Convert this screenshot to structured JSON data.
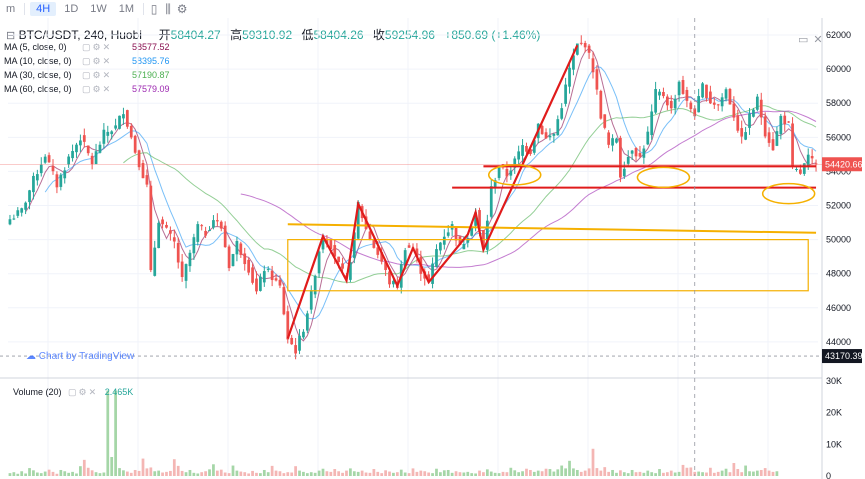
{
  "toolbar": {
    "items": [
      {
        "label": "m"
      },
      {
        "label": "4H"
      },
      {
        "label": "1D"
      },
      {
        "label": "1W"
      },
      {
        "label": "1M"
      }
    ],
    "chart_type_icon": "candles-icon",
    "settings_icon": "settings-icon",
    "chart_icon": "bar-chart-icon"
  },
  "legend": {
    "symbol": "BTC/USDT, 240, Huobi",
    "open_label": "开",
    "open": "58404.27",
    "high_label": "高",
    "high": "59310.92",
    "low_label": "低",
    "low": "58404.26",
    "close_label": "收",
    "close": "59254.96",
    "change": "+850.69 (+1.46%)"
  },
  "indicators": [
    {
      "name": "MA (5, close, 0)",
      "value": "58577.52",
      "color": "#880e4f"
    },
    {
      "name": "MA (10, close, 0)",
      "value": "58395.76",
      "color": "#2196f3"
    },
    {
      "name": "MA (30, close, 0)",
      "value": "57190.87",
      "color": "#4caf50"
    },
    {
      "name": "MA (60, close, 0)",
      "value": "57579.09",
      "color": "#9c27b0"
    }
  ],
  "watermark": "Chart by TradingView",
  "volume": {
    "name": "Volume (20)",
    "value": "2.465K"
  },
  "colors": {
    "up": "#26a69a",
    "down": "#ef5350",
    "drawing_red": "#e01b1b",
    "drawing_orange": "#f5b000"
  },
  "chart_data": {
    "type": "candlestick",
    "title": "BTC/USDT, 240, Huobi",
    "ylim": [
      42000,
      63000
    ],
    "price_ticks": [
      44000,
      46000,
      48000,
      50000,
      52000,
      54000,
      56000,
      58000,
      60000,
      62000
    ],
    "current_price_label": "54420.66",
    "low_price_label": "43170.39",
    "volume_ylim": [
      0,
      30000
    ],
    "volume_ticks": [
      {
        "v": 0,
        "label": "0"
      },
      {
        "v": 10000,
        "label": "10K"
      },
      {
        "v": 20000,
        "label": "20K"
      },
      {
        "v": 30000,
        "label": "30K"
      }
    ],
    "anchors": [
      [
        0,
        51200
      ],
      [
        3,
        51700
      ],
      [
        6,
        53500
      ],
      [
        9,
        55000
      ],
      [
        12,
        53200
      ],
      [
        15,
        54800
      ],
      [
        18,
        56000
      ],
      [
        21,
        54500
      ],
      [
        24,
        56200
      ],
      [
        27,
        56600
      ],
      [
        29,
        57600
      ],
      [
        32,
        55200
      ],
      [
        35,
        53100
      ],
      [
        36,
        48000
      ],
      [
        38,
        51200
      ],
      [
        40,
        50500
      ],
      [
        42,
        49800
      ],
      [
        44,
        47600
      ],
      [
        46,
        49200
      ],
      [
        48,
        50800
      ],
      [
        50,
        50400
      ],
      [
        52,
        51200
      ],
      [
        54,
        50700
      ],
      [
        56,
        48500
      ],
      [
        58,
        49800
      ],
      [
        61,
        48300
      ],
      [
        63,
        46900
      ],
      [
        65,
        48300
      ],
      [
        67,
        47800
      ],
      [
        69,
        47200
      ],
      [
        71,
        44200
      ],
      [
        73,
        43500
      ],
      [
        75,
        44800
      ],
      [
        77,
        46800
      ],
      [
        79,
        49400
      ],
      [
        80,
        50200
      ],
      [
        82,
        49700
      ],
      [
        84,
        48500
      ],
      [
        86,
        47600
      ],
      [
        88,
        50200
      ],
      [
        89,
        52100
      ],
      [
        91,
        50600
      ],
      [
        93,
        49600
      ],
      [
        95,
        48700
      ],
      [
        97,
        47500
      ],
      [
        99,
        47300
      ],
      [
        101,
        49600
      ],
      [
        103,
        49500
      ],
      [
        105,
        48200
      ],
      [
        107,
        47500
      ],
      [
        109,
        49400
      ],
      [
        111,
        50300
      ],
      [
        113,
        50800
      ],
      [
        115,
        49500
      ],
      [
        117,
        50300
      ],
      [
        119,
        51600
      ],
      [
        121,
        49400
      ],
      [
        123,
        53000
      ],
      [
        125,
        54300
      ],
      [
        127,
        53800
      ],
      [
        129,
        54600
      ],
      [
        131,
        55500
      ],
      [
        133,
        55200
      ],
      [
        135,
        56800
      ],
      [
        137,
        55900
      ],
      [
        139,
        56200
      ],
      [
        141,
        57900
      ],
      [
        143,
        60000
      ],
      [
        145,
        61400
      ],
      [
        147,
        61500
      ],
      [
        149,
        60000
      ],
      [
        151,
        57300
      ],
      [
        153,
        55500
      ],
      [
        155,
        56000
      ],
      [
        156,
        53800
      ],
      [
        157,
        54400
      ],
      [
        159,
        55400
      ],
      [
        161,
        54800
      ],
      [
        163,
        56200
      ],
      [
        165,
        58600
      ],
      [
        167,
        58500
      ],
      [
        169,
        57600
      ],
      [
        171,
        59300
      ],
      [
        173,
        58000
      ],
      [
        175,
        57400
      ],
      [
        177,
        59000
      ],
      [
        179,
        58100
      ],
      [
        181,
        57900
      ],
      [
        183,
        58800
      ],
      [
        185,
        57300
      ],
      [
        187,
        55800
      ],
      [
        189,
        57200
      ],
      [
        191,
        58200
      ],
      [
        193,
        56300
      ],
      [
        195,
        55400
      ],
      [
        197,
        57200
      ],
      [
        199,
        56700
      ],
      [
        200,
        54100
      ],
      [
        202,
        53900
      ],
      [
        204,
        54800
      ],
      [
        206,
        54300
      ]
    ],
    "volumes": [
      900,
      1200,
      700,
      1500,
      800,
      2500,
      1800,
      1100,
      900,
      1400,
      2000,
      1300,
      700,
      1900,
      1500,
      1000,
      1300,
      800,
      3100,
      5100,
      2600,
      1800,
      1200,
      900,
      1100,
      27000,
      6000,
      27000,
      2500,
      1800,
      1400,
      1000,
      1900,
      1600,
      5500,
      2400,
      2700,
      1500,
      1700,
      1100,
      1300,
      1600,
      5300,
      3200,
      1600,
      1200,
      1900,
      1000,
      800,
      1200,
      1500,
      2100,
      3700,
      1700,
      2000,
      1100,
      900,
      3300,
      1700,
      1400,
      1200,
      800,
      1600,
      1000,
      900,
      1900,
      1200,
      3200,
      1700,
      1500,
      900,
      1200,
      1100,
      3100,
      1700,
      1300,
      900,
      1200,
      1000,
      1700,
      2300,
      1500,
      1300,
      2200,
      1500,
      1000,
      1700,
      2400,
      1500,
      1300,
      1700,
      1100,
      1000,
      2200,
      1300,
      900,
      1800,
      1400,
      1000,
      1200,
      2000,
      1100,
      900,
      2400,
      1300,
      1700,
      1500,
      1100,
      900,
      2300,
      1200,
      1800,
      1900,
      1000,
      1500,
      1200,
      1100,
      1300,
      900,
      800,
      1700,
      1200,
      2100,
      1400,
      1000,
      900,
      1300,
      1200,
      2600,
      1800,
      1200,
      1500,
      2300,
      1900,
      1300,
      1700,
      1500,
      2300,
      2200,
      1400,
      2100,
      3300,
      2400,
      4800,
      2400,
      1900,
      1300,
      1700,
      2400,
      8600,
      2500,
      1700,
      2800,
      1300,
      1900,
      1000,
      1800,
      1200,
      900,
      1900,
      1200,
      1300,
      1000,
      1700,
      1200,
      900,
      2200,
      1000,
      1200,
      1700,
      1100,
      1300,
      3500,
      2600,
      2700,
      1300,
      1400,
      1200,
      1100,
      2600,
      1000,
      1300,
      1700,
      2300,
      1200,
      4100,
      2200,
      1200,
      3300,
      1500,
      1400,
      1700,
      1900,
      2500,
      1700,
      1300,
      1500
    ],
    "ma_overlays": [
      {
        "name": "MA (5, close, 0)",
        "color": "#880e4f",
        "period": 5
      },
      {
        "name": "MA (10, close, 0)",
        "color": "#2196f3",
        "period": 10
      },
      {
        "name": "MA (30, close, 0)",
        "color": "#4caf50",
        "period": 30
      },
      {
        "name": "MA (60, close, 0)",
        "color": "#9c27b0",
        "period": 60
      }
    ],
    "drawings": {
      "zigzag_bars": [
        [
          71,
          44200
        ],
        [
          80,
          50200
        ],
        [
          86,
          47600
        ],
        [
          89,
          52100
        ],
        [
          99,
          47300
        ],
        [
          103,
          49500
        ],
        [
          107,
          47500
        ],
        [
          117,
          50300
        ],
        [
          119,
          51600
        ],
        [
          121,
          49400
        ],
        [
          145,
          61400
        ]
      ],
      "rectangle_bars": [
        71,
        204
      ],
      "rectangle_prices": [
        50000,
        47000
      ],
      "upper_line_prices": [
        50900,
        50400
      ],
      "upper_line_bars": [
        71,
        206
      ],
      "resistance_line_price": 54300,
      "resistance_line_bars": [
        121,
        206
      ],
      "support_line_price": 53050,
      "support_line_bars": [
        113,
        206
      ],
      "ellipses": [
        {
          "bar": 129,
          "price": 53800
        },
        {
          "bar": 167,
          "price": 53650
        },
        {
          "bar": 199,
          "price": 52700
        }
      ]
    }
  }
}
